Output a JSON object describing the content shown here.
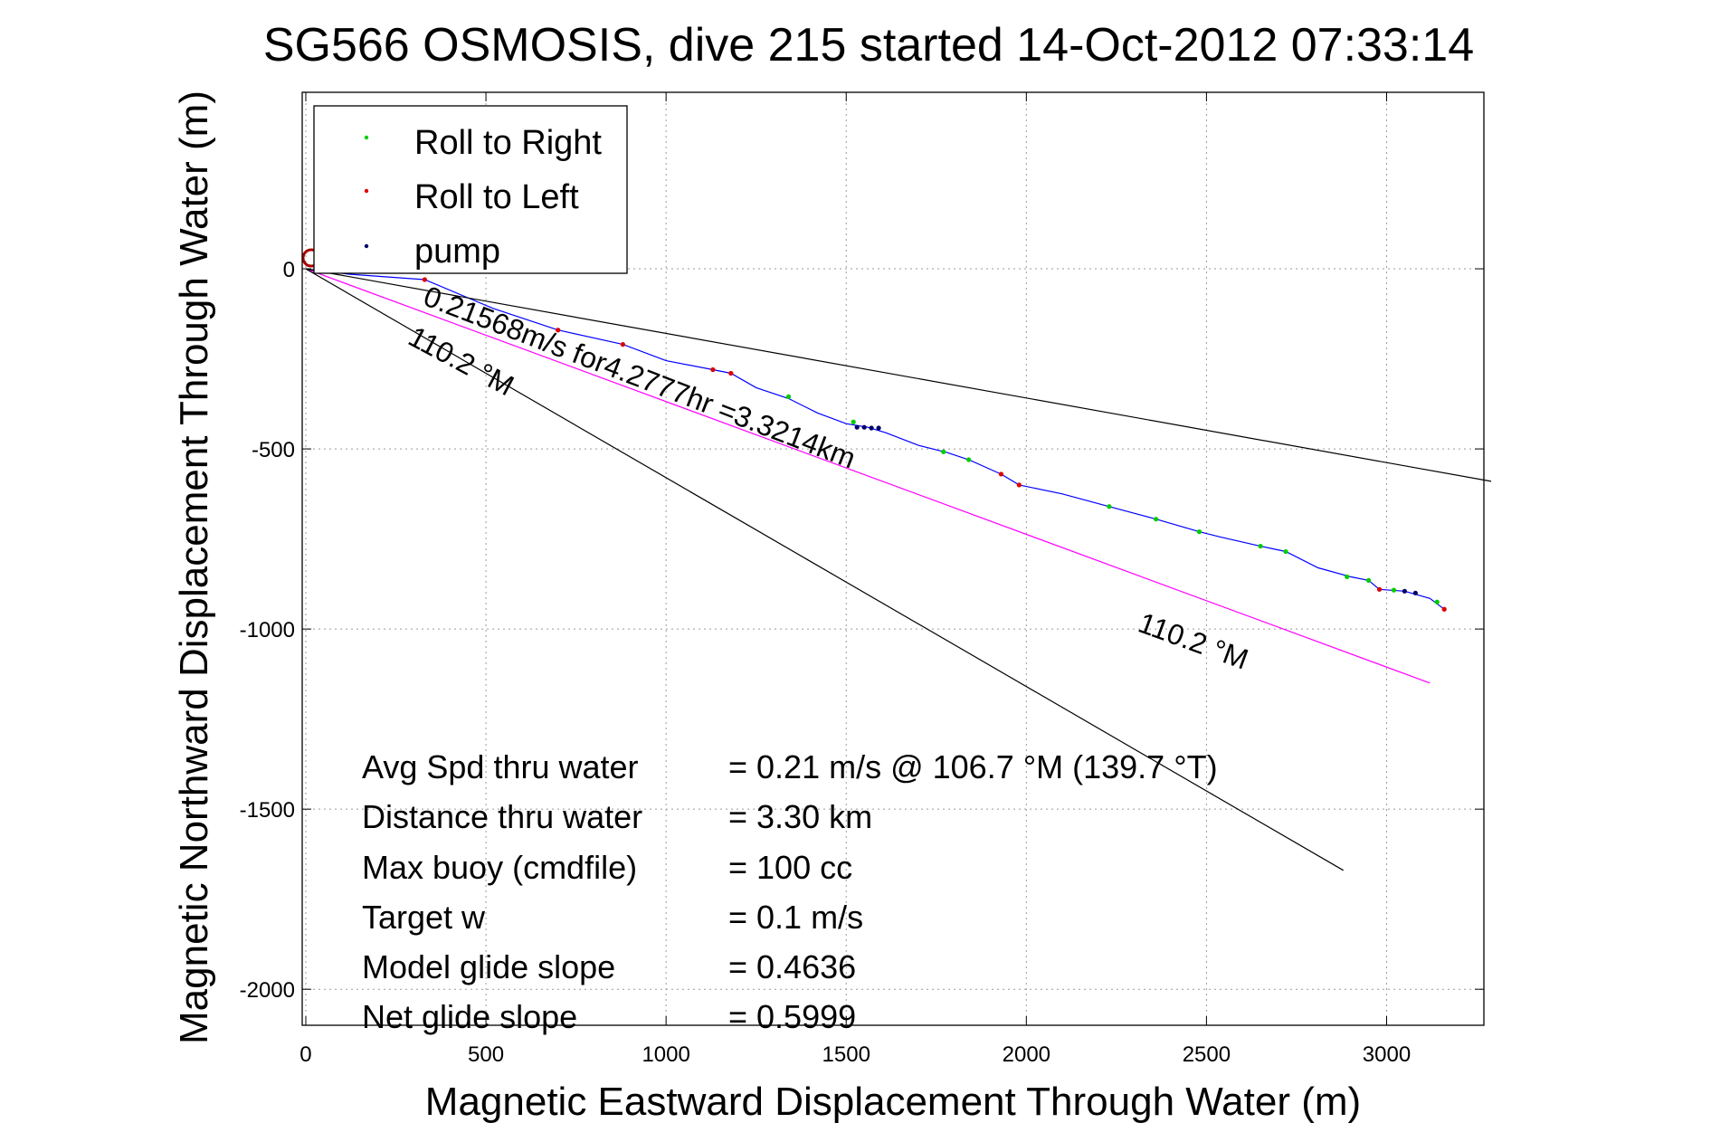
{
  "chart_data": {
    "type": "line",
    "title": "SG566 OSMOSIS, dive 215 started 14-Oct-2012 07:33:14",
    "xlabel": "Magnetic Eastward Displacement Through Water (m)",
    "ylabel": "Magnetic Northward Displacement Through Water (m)",
    "xlim": [
      -10,
      3270
    ],
    "ylim": [
      -2100,
      490
    ],
    "xticks": [
      0,
      500,
      1000,
      1500,
      2000,
      2500,
      3000
    ],
    "yticks": [
      0,
      -500,
      -1000,
      -1500,
      -2000
    ],
    "grid": true,
    "legend_position": "top-left",
    "legend": [
      {
        "label": "Roll to Right",
        "color": "#00cc00"
      },
      {
        "label": "Roll to Left",
        "color": "#dd0000"
      },
      {
        "label": "pump",
        "color": "#000066"
      }
    ],
    "series": [
      {
        "color": "#0000ff",
        "x": [
          0,
          120,
          330,
          520,
          700,
          880,
          1000,
          1130,
          1180,
          1250,
          1340,
          1420,
          1500,
          1560,
          1610,
          1700,
          1780,
          1840,
          1930,
          1980,
          2100,
          2230,
          2360,
          2480,
          2540,
          2650,
          2720,
          2810,
          2900,
          2950,
          2980,
          3050,
          3120,
          3160
        ],
        "y": [
          0,
          -15,
          -30,
          -110,
          -170,
          -210,
          -255,
          -280,
          -290,
          -330,
          -360,
          -400,
          -430,
          -440,
          -455,
          -490,
          -510,
          -530,
          -570,
          -600,
          -625,
          -660,
          -695,
          -730,
          -745,
          -770,
          -785,
          -830,
          -855,
          -865,
          -890,
          -895,
          -915,
          -945
        ]
      },
      {
        "color": "#ff00ff",
        "x": [
          0,
          3120
        ],
        "y": [
          0,
          -1150
        ]
      },
      {
        "color": "#000000",
        "x": [
          0,
          3290
        ],
        "y": [
          0,
          -590
        ]
      },
      {
        "color": "#000000",
        "x": [
          0,
          2880
        ],
        "y": [
          0,
          -1670
        ]
      }
    ],
    "roll_right_points": {
      "x": [
        1340,
        1520,
        1770,
        1840,
        2230,
        2360,
        2480,
        2650,
        2720,
        2890,
        2950,
        3020,
        3140
      ],
      "y": [
        -355,
        -425,
        -508,
        -530,
        -660,
        -695,
        -730,
        -770,
        -785,
        -855,
        -865,
        -892,
        -925
      ]
    },
    "roll_left_points": {
      "x": [
        330,
        700,
        880,
        1130,
        1180,
        1930,
        1980,
        2980,
        3160
      ],
      "y": [
        -30,
        -170,
        -210,
        -280,
        -290,
        -570,
        -600,
        -890,
        -945
      ]
    },
    "pump_points": {
      "x": [
        1530,
        1550,
        1570,
        1590,
        3050,
        3080
      ],
      "y": [
        -440,
        -440,
        -442,
        -442,
        -895,
        -900
      ]
    },
    "annotations": {
      "speed_line": "0.21568m/s for4.2777hr =3.3214km",
      "heading_upper": "110.2 °M",
      "heading_lower": "110.2 °M"
    },
    "summary": [
      {
        "label": "Avg Spd thru water",
        "value": "=  0.21 m/s @ 106.7 °M (139.7 °T)"
      },
      {
        "label": "Distance thru water",
        "value": "=  3.30 km"
      },
      {
        "label": "Max buoy (cmdfile)",
        "value": "= 100 cc"
      },
      {
        "label": "Target w",
        "value": "= 0.1 m/s"
      },
      {
        "label": "Model glide slope",
        "value": "= 0.4636"
      },
      {
        "label": "Net glide slope",
        "value": "= 0.5999"
      }
    ]
  }
}
